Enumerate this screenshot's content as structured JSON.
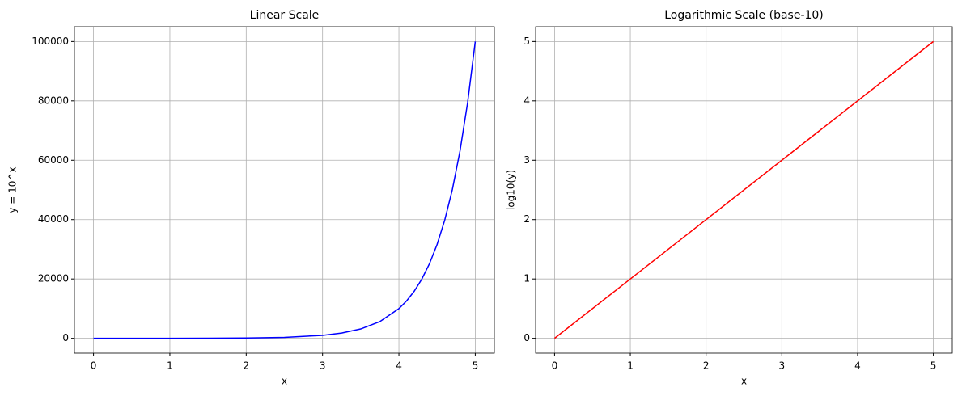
{
  "chart_data": [
    {
      "type": "line",
      "title": "Linear Scale",
      "xlabel": "x",
      "ylabel": "y = 10^x",
      "x": [
        0,
        0.5,
        1,
        1.5,
        2,
        2.5,
        3,
        3.25,
        3.5,
        3.75,
        4,
        4.1,
        4.2,
        4.3,
        4.4,
        4.5,
        4.6,
        4.7,
        4.8,
        4.9,
        5
      ],
      "series": [
        {
          "color": "#0000ff",
          "values": [
            1,
            3.162,
            10,
            31.62,
            100,
            316.2,
            1000,
            1778,
            3162,
            5623,
            10000,
            12589,
            15849,
            19953,
            25119,
            31623,
            39811,
            50119,
            63096,
            79433,
            100000
          ]
        }
      ],
      "xlim": [
        -0.25,
        5.25
      ],
      "xticks": [
        0,
        1,
        2,
        3,
        4,
        5
      ],
      "ylim": [
        -5000,
        105000
      ],
      "yticks": [
        0,
        20000,
        40000,
        60000,
        80000,
        100000
      ],
      "grid": true
    },
    {
      "type": "line",
      "title": "Logarithmic Scale (base-10)",
      "xlabel": "x",
      "ylabel": "log10(y)",
      "x": [
        0,
        5
      ],
      "series": [
        {
          "color": "#ff0000",
          "values": [
            0,
            5
          ]
        }
      ],
      "xlim": [
        -0.25,
        5.25
      ],
      "xticks": [
        0,
        1,
        2,
        3,
        4,
        5
      ],
      "ylim": [
        -0.25,
        5.25
      ],
      "yticks": [
        0,
        1,
        2,
        3,
        4,
        5
      ],
      "grid": true
    }
  ]
}
